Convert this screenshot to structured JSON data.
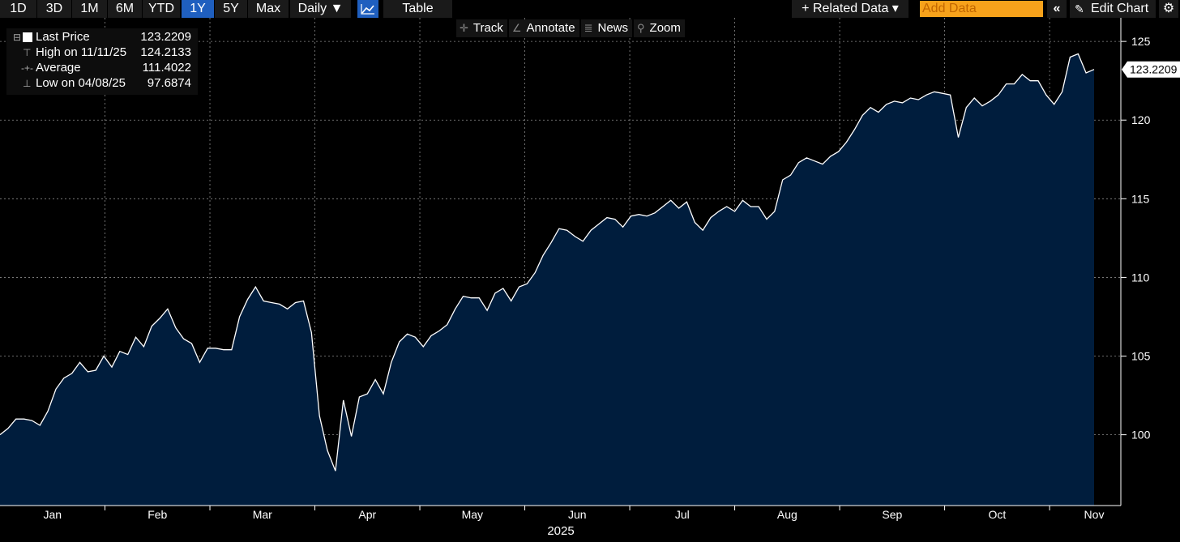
{
  "toolbar": {
    "periods": [
      "1D",
      "3D",
      "1M",
      "6M",
      "YTD",
      "1Y",
      "5Y",
      "Max"
    ],
    "active_period": "1Y",
    "frequency": "Daily ▼",
    "table_label": "Table",
    "related_data": "+ Related Data ▾",
    "add_data_placeholder": "Add Data",
    "edit_chart": "Edit Chart"
  },
  "subtools": [
    "Track",
    "Annotate",
    "News",
    "Zoom"
  ],
  "legend": {
    "last_price_label": "Last Price",
    "last_price_value": "123.2209",
    "high_label": "High on 11/11/25",
    "high_value": "124.2133",
    "average_label": "Average",
    "average_value": "111.4022",
    "low_label": "Low on 04/08/25",
    "low_value": "97.6874"
  },
  "colors": {
    "background": "#000000",
    "area_fill": "#001d3d",
    "line": "#ffffff",
    "active_button": "#1f5fbf",
    "add_data_bg": "#f7a21b"
  },
  "chart_data": {
    "type": "area",
    "x_year_label": "2025",
    "x_ticks": [
      "Jan",
      "Feb",
      "Mar",
      "Apr",
      "May",
      "Jun",
      "Jul",
      "Aug",
      "Sep",
      "Oct",
      "Nov"
    ],
    "y_ticks": [
      100,
      105,
      110,
      115,
      120,
      125
    ],
    "ylim": [
      95.5,
      126.5
    ],
    "grid": true,
    "last_value_label": "123.2209",
    "series": [
      {
        "values": [
          100.0,
          100.4,
          101.0,
          101.0,
          100.9,
          100.6,
          101.5,
          102.9,
          103.6,
          103.9,
          104.6,
          104.0,
          104.1,
          105.0,
          104.3,
          105.3,
          105.1,
          106.2,
          105.6,
          106.9,
          107.4,
          108.0,
          106.8,
          106.1,
          105.8,
          104.6,
          105.5,
          105.5,
          105.4,
          105.4,
          107.5,
          108.6,
          109.4,
          108.5,
          108.4,
          108.3,
          108.0,
          108.4,
          108.5,
          106.5,
          101.2,
          99.0,
          97.7,
          102.2,
          99.9,
          102.4,
          102.6,
          103.5,
          102.6,
          104.6,
          105.9,
          106.4,
          106.2,
          105.6,
          106.3,
          106.6,
          107.0,
          108.0,
          108.8,
          108.7,
          108.7,
          107.9,
          109.0,
          109.3,
          108.5,
          109.4,
          109.6,
          110.3,
          111.4,
          112.2,
          113.1,
          113.0,
          112.6,
          112.3,
          113.0,
          113.4,
          113.8,
          113.7,
          113.2,
          113.9,
          114.0,
          113.9,
          114.1,
          114.5,
          114.9,
          114.4,
          114.8,
          113.5,
          113.0,
          113.8,
          114.2,
          114.5,
          114.2,
          114.9,
          114.5,
          114.5,
          113.7,
          114.2,
          116.2,
          116.5,
          117.3,
          117.6,
          117.4,
          117.2,
          117.7,
          118.0,
          118.6,
          119.4,
          120.3,
          120.8,
          120.5,
          121.0,
          121.2,
          121.1,
          121.4,
          121.3,
          121.6,
          121.8,
          121.7,
          121.6,
          118.9,
          120.8,
          121.4,
          120.9,
          121.2,
          121.6,
          122.3,
          122.3,
          122.9,
          122.5,
          122.5,
          121.6,
          121.0,
          121.8,
          124.0,
          124.21,
          123.0,
          123.22
        ]
      }
    ]
  }
}
